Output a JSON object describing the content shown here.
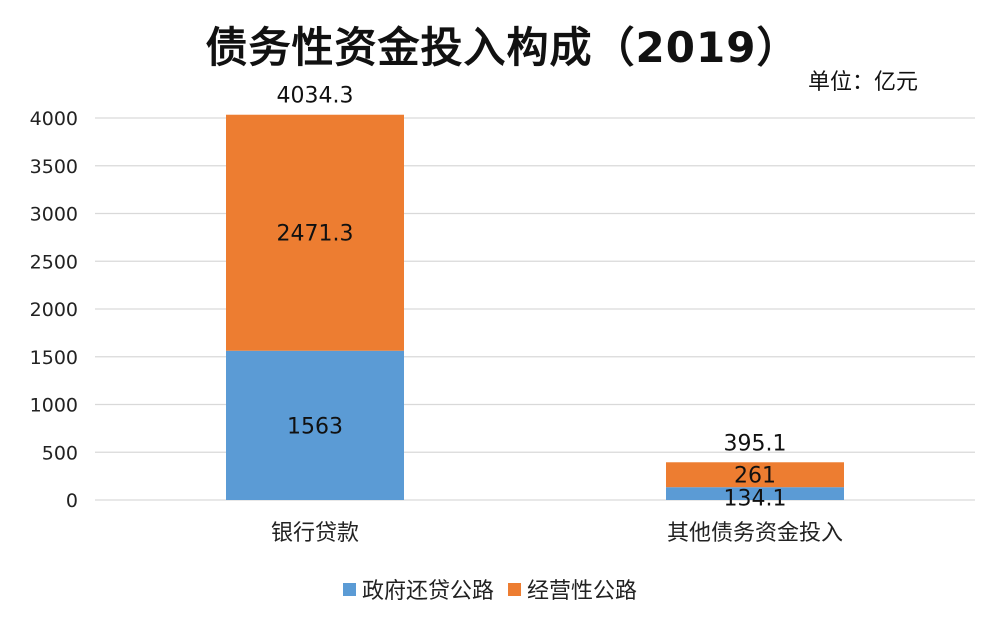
{
  "chart_data": {
    "type": "bar",
    "stacked": true,
    "title": "债务性资金投入构成（2019）",
    "unit": "单位：亿元",
    "categories": [
      "银行贷款",
      "其他债务资金投入"
    ],
    "series": [
      {
        "name": "政府还贷公路",
        "color": "#5B9BD5",
        "values": [
          1563,
          134.1
        ],
        "labels": [
          "1563",
          "134.1"
        ]
      },
      {
        "name": "经营性公路",
        "color": "#ED7D31",
        "values": [
          2471.3,
          261
        ],
        "labels": [
          "2471.3",
          "261"
        ]
      }
    ],
    "totals": [
      "4034.3",
      "395.1"
    ],
    "ylim": [
      0,
      4000
    ],
    "yticks": [
      "0",
      "500",
      "1000",
      "1500",
      "2000",
      "2500",
      "3000",
      "3500",
      "4000"
    ],
    "grid": true,
    "gridColor": "#D9D9D9",
    "legend": "bottom"
  }
}
